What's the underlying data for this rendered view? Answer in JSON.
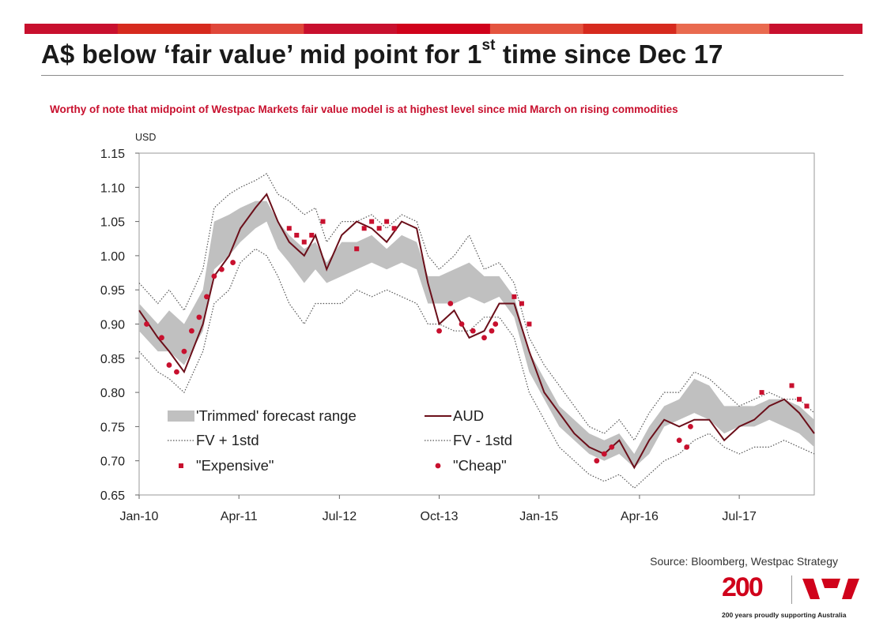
{
  "header": {
    "title_main": "A$ below ‘fair value’ mid point for 1",
    "title_sup": "st",
    "title_end": " time since Dec 17",
    "subtitle": "Worthy of note that midpoint of Westpac Markets fair value model is at highest level since mid March on rising commodities",
    "bar_colors": [
      "#c8102e",
      "#d62a1e",
      "#e0473a",
      "#c8102e",
      "#d0021b",
      "#e4543f",
      "#d62a1e",
      "#e96a4f",
      "#c8102e"
    ]
  },
  "chart_data": {
    "type": "line",
    "title": "",
    "ylabel": "USD",
    "ylim": [
      0.65,
      1.15
    ],
    "yticks": [
      "0.65",
      "0.70",
      "0.75",
      "0.80",
      "0.85",
      "0.90",
      "0.95",
      "1.00",
      "1.05",
      "1.10",
      "1.15"
    ],
    "xlim": [
      2010.0,
      2019.0
    ],
    "xticks": [
      {
        "label": "Jan-10",
        "x": 2010.0
      },
      {
        "label": "Apr-11",
        "x": 2011.33
      },
      {
        "label": "Jul-12",
        "x": 2012.67
      },
      {
        "label": "Oct-13",
        "x": 2014.0
      },
      {
        "label": "Jan-15",
        "x": 2015.33
      },
      {
        "label": "Apr-16",
        "x": 2016.67
      },
      {
        "label": "Jul-17",
        "x": 2018.0
      }
    ],
    "x": [
      2010.0,
      2010.25,
      2010.4,
      2010.6,
      2010.85,
      2011.0,
      2011.2,
      2011.35,
      2011.55,
      2011.7,
      2011.85,
      2012.0,
      2012.2,
      2012.35,
      2012.5,
      2012.7,
      2012.9,
      2013.1,
      2013.3,
      2013.5,
      2013.7,
      2013.85,
      2014.0,
      2014.2,
      2014.4,
      2014.6,
      2014.8,
      2015.0,
      2015.2,
      2015.4,
      2015.6,
      2015.8,
      2016.0,
      2016.2,
      2016.4,
      2016.6,
      2016.8,
      2017.0,
      2017.2,
      2017.4,
      2017.6,
      2017.8,
      2018.0,
      2018.2,
      2018.4,
      2018.6,
      2018.8,
      2019.0
    ],
    "series": [
      {
        "name": "AUD",
        "color": "#6b0f1a",
        "values": [
          0.92,
          0.88,
          0.86,
          0.83,
          0.9,
          0.97,
          1.0,
          1.04,
          1.07,
          1.09,
          1.05,
          1.02,
          1.0,
          1.03,
          0.98,
          1.03,
          1.05,
          1.04,
          1.02,
          1.05,
          1.04,
          0.96,
          0.9,
          0.92,
          0.88,
          0.89,
          0.93,
          0.93,
          0.86,
          0.8,
          0.77,
          0.74,
          0.72,
          0.71,
          0.73,
          0.69,
          0.73,
          0.76,
          0.75,
          0.76,
          0.76,
          0.73,
          0.75,
          0.76,
          0.78,
          0.79,
          0.77,
          0.74
        ]
      },
      {
        "name": "FV + 1std",
        "color": "#555555",
        "values": [
          0.96,
          0.93,
          0.95,
          0.92,
          0.98,
          1.07,
          1.09,
          1.1,
          1.11,
          1.12,
          1.09,
          1.08,
          1.06,
          1.07,
          1.02,
          1.05,
          1.05,
          1.06,
          1.04,
          1.06,
          1.05,
          1.0,
          0.98,
          1.0,
          1.03,
          0.98,
          0.99,
          0.96,
          0.88,
          0.84,
          0.81,
          0.78,
          0.75,
          0.74,
          0.76,
          0.73,
          0.77,
          0.8,
          0.8,
          0.83,
          0.82,
          0.8,
          0.78,
          0.79,
          0.8,
          0.79,
          0.79,
          0.77
        ]
      },
      {
        "name": "FV - 1std",
        "color": "#555555",
        "values": [
          0.86,
          0.83,
          0.82,
          0.8,
          0.86,
          0.93,
          0.95,
          0.99,
          1.01,
          1.0,
          0.97,
          0.93,
          0.9,
          0.93,
          0.93,
          0.93,
          0.95,
          0.94,
          0.95,
          0.94,
          0.93,
          0.9,
          0.9,
          0.89,
          0.89,
          0.91,
          0.91,
          0.88,
          0.8,
          0.76,
          0.72,
          0.7,
          0.68,
          0.67,
          0.68,
          0.66,
          0.68,
          0.7,
          0.71,
          0.73,
          0.74,
          0.72,
          0.71,
          0.72,
          0.72,
          0.73,
          0.72,
          0.71
        ]
      },
      {
        "name": "'Trimmed' forecast range",
        "color": "#c0c0c0",
        "lower": [
          0.89,
          0.86,
          0.86,
          0.84,
          0.89,
          0.98,
          1.0,
          1.02,
          1.04,
          1.05,
          1.01,
          0.99,
          0.96,
          0.98,
          0.96,
          0.97,
          0.98,
          0.99,
          0.98,
          0.99,
          0.98,
          0.93,
          0.93,
          0.93,
          0.94,
          0.93,
          0.94,
          0.91,
          0.83,
          0.79,
          0.75,
          0.73,
          0.71,
          0.7,
          0.71,
          0.69,
          0.71,
          0.75,
          0.76,
          0.77,
          0.76,
          0.74,
          0.75,
          0.75,
          0.76,
          0.75,
          0.74,
          0.72
        ],
        "upper": [
          0.93,
          0.9,
          0.92,
          0.9,
          0.95,
          1.05,
          1.06,
          1.07,
          1.08,
          1.08,
          1.05,
          1.03,
          1.01,
          1.02,
          0.99,
          1.02,
          1.02,
          1.03,
          1.01,
          1.03,
          1.02,
          0.97,
          0.97,
          0.98,
          0.99,
          0.97,
          0.97,
          0.94,
          0.86,
          0.82,
          0.78,
          0.76,
          0.74,
          0.73,
          0.74,
          0.71,
          0.75,
          0.78,
          0.79,
          0.82,
          0.81,
          0.78,
          0.78,
          0.78,
          0.79,
          0.79,
          0.78,
          0.76
        ]
      }
    ],
    "expensive": {
      "name": "\"Expensive\"",
      "color": "#c8102e",
      "x": [
        2012.0,
        2012.1,
        2012.2,
        2012.3,
        2012.45,
        2012.9,
        2013.0,
        2013.1,
        2013.2,
        2013.3,
        2013.4,
        2015.0,
        2015.1,
        2015.2,
        2018.3,
        2018.7,
        2018.8,
        2018.9
      ],
      "y": [
        1.04,
        1.03,
        1.02,
        1.03,
        1.05,
        1.01,
        1.04,
        1.05,
        1.04,
        1.05,
        1.04,
        0.94,
        0.93,
        0.9,
        0.8,
        0.81,
        0.79,
        0.78
      ]
    },
    "cheap": {
      "name": "\"Cheap\"",
      "color": "#c8102e",
      "x": [
        2010.1,
        2010.3,
        2010.4,
        2010.5,
        2010.6,
        2010.7,
        2010.8,
        2010.9,
        2011.0,
        2011.1,
        2011.25,
        2014.0,
        2014.15,
        2014.3,
        2014.45,
        2014.6,
        2014.7,
        2014.75,
        2016.1,
        2016.2,
        2016.3,
        2017.2,
        2017.3,
        2017.35
      ],
      "y": [
        0.9,
        0.88,
        0.84,
        0.83,
        0.86,
        0.89,
        0.91,
        0.94,
        0.97,
        0.98,
        0.99,
        0.89,
        0.93,
        0.9,
        0.89,
        0.88,
        0.89,
        0.9,
        0.7,
        0.71,
        0.72,
        0.73,
        0.72,
        0.75
      ]
    },
    "legend": [
      {
        "label": "'Trimmed' forecast range",
        "kind": "band"
      },
      {
        "label": "AUD",
        "kind": "line"
      },
      {
        "label": "FV + 1std",
        "kind": "dotted"
      },
      {
        "label": "FV - 1std",
        "kind": "dotted"
      },
      {
        "label": "\"Expensive\"",
        "kind": "square"
      },
      {
        "label": "\"Cheap\"",
        "kind": "circle"
      }
    ]
  },
  "footer": {
    "source": "Source:  Bloomberg, Westpac Strategy",
    "logo_number": "200",
    "logo_tagline": "200 years proudly supporting Australia"
  }
}
